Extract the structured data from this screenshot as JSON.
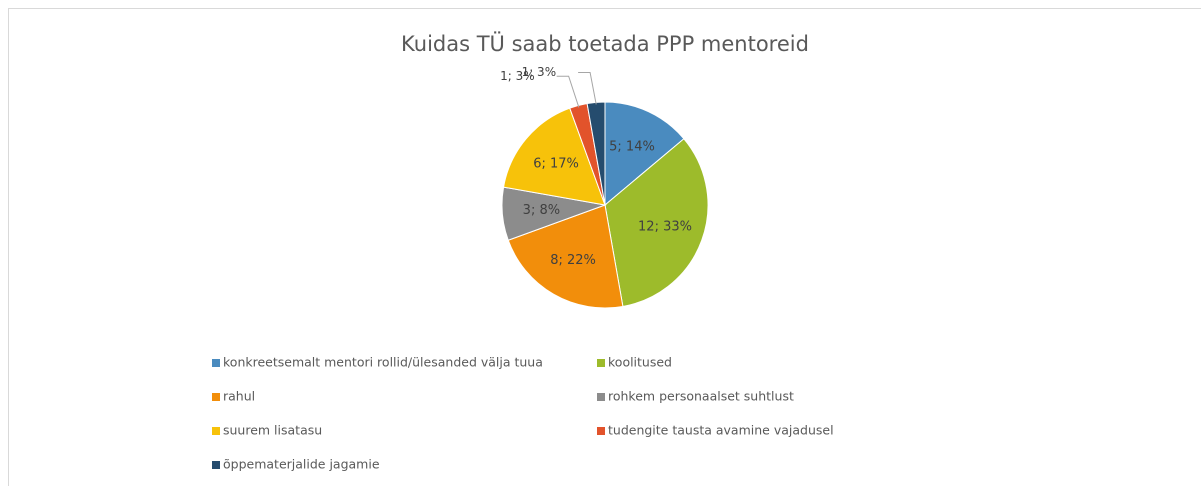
{
  "chart_data": {
    "type": "pie",
    "title": "Kuidas TÜ saab toetada PPP mentoreid",
    "categories": [
      "konkreetsemalt mentori rollid/ülesanded välja tuua",
      "koolitused",
      "rahul",
      "rohkem personaalset suhtlust",
      "suurem lisatasu",
      "tudengite tausta avamine vajadusel",
      "õppematerjalide jagamie"
    ],
    "values": [
      5,
      12,
      8,
      3,
      6,
      1,
      1
    ],
    "value_labels": [
      "5; 14%",
      "12; 33%",
      "8; 22%",
      "3; 8%",
      "6; 17%",
      "1; 3%",
      "1; 3%"
    ],
    "colors": [
      "#4a8bbf",
      "#9dbb2b",
      "#f28e0b",
      "#8c8c8c",
      "#f7c20a",
      "#e2532b",
      "#254c6e"
    ],
    "legend": "bottom"
  }
}
